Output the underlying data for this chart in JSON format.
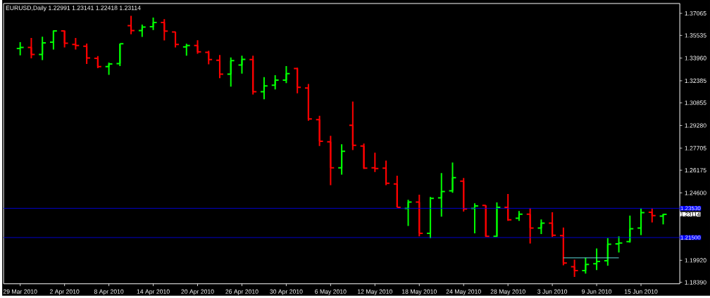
{
  "chart_data": {
    "type": "candlestick",
    "title": "EURUSD,Daily  1.22991 1.23141 1.22418 1.23114",
    "categories": [
      "29 Mar 2010",
      null,
      null,
      null,
      "2 Apr 2010",
      null,
      null,
      null,
      "8 Apr 2010",
      null,
      null,
      null,
      "14 Apr 2010",
      null,
      null,
      null,
      "20 Apr 2010",
      null,
      null,
      null,
      "26 Apr 2010",
      null,
      null,
      null,
      "30 Apr 2010",
      null,
      null,
      null,
      "6 May 2010",
      null,
      null,
      null,
      "12 May 2010",
      null,
      null,
      null,
      "18 May 2010",
      null,
      null,
      null,
      "24 May 2010",
      null,
      null,
      null,
      "28 May 2010",
      null,
      null,
      null,
      "3 Jun 2010",
      null,
      null,
      null,
      "9 Jun 2010",
      null,
      null,
      null,
      "15 Jun 2010",
      null,
      null
    ],
    "series": [
      {
        "ohlc": [
          [
            1.3462,
            1.3507,
            1.3415,
            1.347
          ],
          [
            1.347,
            1.3536,
            1.3394,
            1.3421
          ],
          [
            1.3421,
            1.3544,
            1.3382,
            1.3502
          ],
          [
            1.3507,
            1.3588,
            1.3455,
            1.3585
          ],
          [
            1.3585,
            1.3588,
            1.347,
            1.3499
          ],
          [
            1.3491,
            1.3536,
            1.3455,
            1.3483
          ],
          [
            1.3478,
            1.3497,
            1.3355,
            1.3397
          ],
          [
            1.3394,
            1.341,
            1.3326,
            1.3337
          ],
          [
            1.3337,
            1.3365,
            1.328,
            1.3355
          ],
          [
            1.3358,
            1.3496,
            1.334,
            1.3496
          ],
          [
            1.3621,
            1.369,
            1.3561,
            1.3587
          ],
          [
            1.3587,
            1.3629,
            1.3543,
            1.3611
          ],
          [
            1.3614,
            1.3677,
            1.3591,
            1.3643
          ],
          [
            1.3643,
            1.3666,
            1.3519,
            1.3583
          ],
          [
            1.3577,
            1.358,
            1.347,
            1.3491
          ],
          [
            1.3473,
            1.3496,
            1.3412,
            1.3483
          ],
          [
            1.3483,
            1.352,
            1.3426,
            1.3439
          ],
          [
            1.3436,
            1.3447,
            1.3353,
            1.3386
          ],
          [
            1.3381,
            1.3418,
            1.3256,
            1.3284
          ],
          [
            1.3284,
            1.34,
            1.3198,
            1.3378
          ],
          [
            1.3348,
            1.3413,
            1.3288,
            1.3387
          ],
          [
            1.3386,
            1.3413,
            1.3143,
            1.3162
          ],
          [
            1.3162,
            1.3264,
            1.311,
            1.3203
          ],
          [
            1.3208,
            1.3277,
            1.3178,
            1.3243
          ],
          [
            1.3243,
            1.334,
            1.3222,
            1.3288
          ],
          [
            1.3324,
            1.3329,
            1.3151,
            1.3193
          ],
          [
            1.3188,
            1.3216,
            1.2961,
            1.2973
          ],
          [
            1.2969,
            1.2995,
            1.2785,
            1.2819
          ],
          [
            1.2815,
            1.2856,
            1.2513,
            1.2634
          ],
          [
            1.2634,
            1.2798,
            1.2587,
            1.2749
          ],
          [
            1.2929,
            1.3094,
            1.2757,
            1.279
          ],
          [
            1.2786,
            1.2802,
            1.2626,
            1.2632
          ],
          [
            1.2634,
            1.2739,
            1.2605,
            1.2629
          ],
          [
            1.2632,
            1.2684,
            1.2514,
            1.2527
          ],
          [
            1.2522,
            1.2579,
            1.236,
            1.236
          ],
          [
            1.2352,
            1.2412,
            1.2231,
            1.2396
          ],
          [
            1.2396,
            1.2448,
            1.2159,
            1.2179
          ],
          [
            1.2179,
            1.2432,
            1.2145,
            1.2422
          ],
          [
            1.2425,
            1.2598,
            1.2295,
            1.2469
          ],
          [
            1.2474,
            1.2671,
            1.2461,
            1.2566
          ],
          [
            1.2542,
            1.2563,
            1.2331,
            1.2349
          ],
          [
            1.2352,
            1.2388,
            1.2179,
            1.237
          ],
          [
            1.2373,
            1.2373,
            1.2154,
            1.2159
          ],
          [
            1.2159,
            1.2394,
            1.2154,
            1.236
          ],
          [
            1.236,
            1.2453,
            1.2266,
            1.2273
          ],
          [
            1.2284,
            1.2334,
            1.2266,
            1.2312
          ],
          [
            1.2312,
            1.2352,
            1.2109,
            1.2216
          ],
          [
            1.2216,
            1.2276,
            1.2174,
            1.225
          ],
          [
            1.225,
            1.2326,
            1.2154,
            1.2166
          ],
          [
            1.2163,
            1.2219,
            1.1957,
            1.1973
          ],
          [
            1.1947,
            1.1996,
            1.1876,
            1.192
          ],
          [
            1.192,
            1.2009,
            1.19,
            1.1963
          ],
          [
            1.1968,
            1.2074,
            1.1924,
            1.1984
          ],
          [
            1.1989,
            1.2146,
            1.1955,
            1.2104
          ],
          [
            1.2106,
            1.2158,
            1.2046,
            1.2112
          ],
          [
            1.2122,
            1.2302,
            1.2114,
            1.2211
          ],
          [
            1.2216,
            1.2351,
            1.2167,
            1.2323
          ],
          [
            1.2325,
            1.2351,
            1.2255,
            1.2302
          ],
          [
            1.22991,
            1.23141,
            1.22418,
            1.23114
          ]
        ],
        "colors": [
          "#00ff00",
          "#ff0000",
          "#00ff00",
          "#00ff00",
          "#ff0000",
          "#ff0000",
          "#ff0000",
          "#ff0000",
          "#00ff00",
          "#00ff00",
          "#ff0000",
          "#00ff00",
          "#00ff00",
          "#ff0000",
          "#ff0000",
          "#00ff00",
          "#ff0000",
          "#ff0000",
          "#ff0000",
          "#00ff00",
          "#00ff00",
          "#ff0000",
          "#00ff00",
          "#00ff00",
          "#00ff00",
          "#ff0000",
          "#ff0000",
          "#ff0000",
          "#ff0000",
          "#00ff00",
          "#ff0000",
          "#ff0000",
          "#ff0000",
          "#ff0000",
          "#ff0000",
          "#00ff00",
          "#ff0000",
          "#00ff00",
          "#00ff00",
          "#00ff00",
          "#ff0000",
          "#00ff00",
          "#ff0000",
          "#00ff00",
          "#ff0000",
          "#00ff00",
          "#ff0000",
          "#00ff00",
          "#ff0000",
          "#ff0000",
          "#ff0000",
          "#00ff00",
          "#00ff00",
          "#00ff00",
          "#00ff00",
          "#00ff00",
          "#00ff00",
          "#ff0000",
          "#00ff00"
        ]
      },
      {
        "type": "line",
        "color": "#5fd7d7",
        "values": [
          null,
          null,
          null,
          null,
          null,
          null,
          null,
          null,
          null,
          null,
          null,
          null,
          null,
          null,
          null,
          null,
          null,
          null,
          null,
          null,
          null,
          null,
          null,
          null,
          null,
          null,
          null,
          null,
          null,
          null,
          null,
          null,
          null,
          null,
          null,
          null,
          null,
          null,
          null,
          null,
          null,
          null,
          null,
          null,
          null,
          null,
          null,
          null,
          null,
          1.2009,
          1.2009,
          1.2009,
          1.2009,
          1.2009,
          1.2009,
          null,
          null,
          null,
          null
        ]
      }
    ],
    "ylim": [
      1.1829,
      1.3775
    ],
    "yticks": [
      1.37065,
      1.35535,
      {
        "value": 1.3396,
        "label": "1.33960"
      },
      1.32385,
      1.30855,
      {
        "value": 1.2928,
        "label": "1.29280"
      },
      1.27705,
      1.26175,
      {
        "value": 1.246,
        "label": "1.24600"
      },
      {
        "value": 1.1992,
        "label": "1.19920"
      },
      {
        "value": 1.1839,
        "label": "1.18390"
      }
    ],
    "ref_lines": [
      {
        "axis": "y",
        "value": 1.2353,
        "label": "1.23530",
        "color": "#0000ff"
      },
      {
        "axis": "y",
        "value": 1.215,
        "label": "1.21500",
        "color": "#0000ff"
      }
    ],
    "annotations": [
      "1.23114"
    ]
  }
}
